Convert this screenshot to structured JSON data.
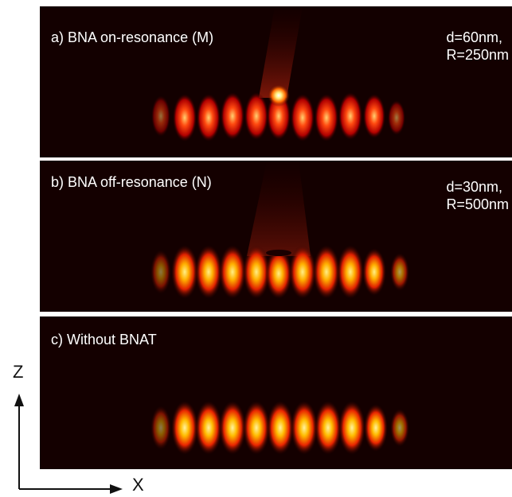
{
  "panels": [
    {
      "title": "a) BNA on-resonance (M)",
      "param_line1": "d=60nm,",
      "param_line2": "R=250nm"
    },
    {
      "title": "b) BNA off-resonance (N)",
      "param_line1": "d=30nm,",
      "param_line2": "R=500nm"
    },
    {
      "title": "c) Without BNAT"
    }
  ],
  "axes": {
    "z_label": "Z",
    "x_label": "X"
  }
}
